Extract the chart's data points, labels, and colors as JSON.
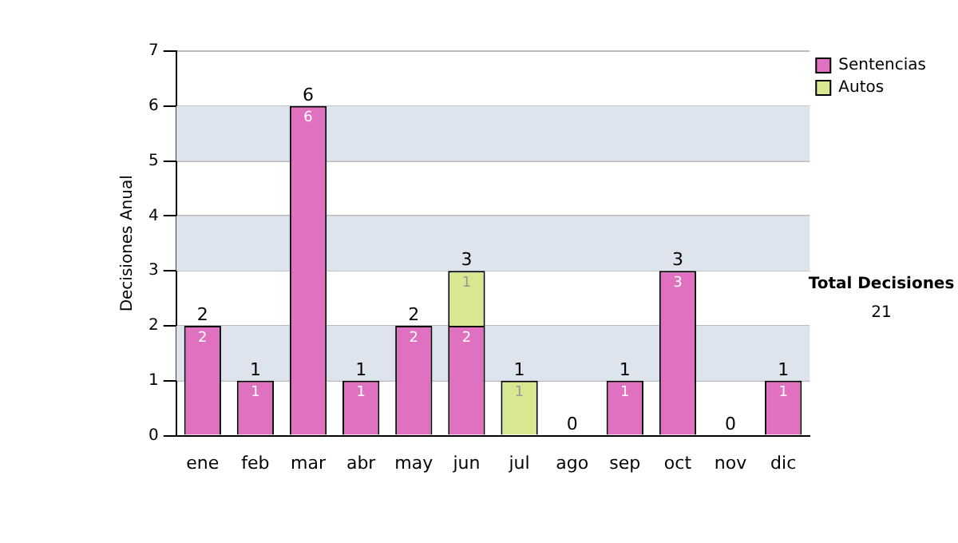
{
  "chart_data": {
    "type": "bar",
    "stacked": true,
    "ylabel": "Decisiones Anual",
    "categories": [
      "ene",
      "feb",
      "mar",
      "abr",
      "may",
      "jun",
      "jul",
      "ago",
      "sep",
      "oct",
      "nov",
      "dic"
    ],
    "series": [
      {
        "name": "Sentencias",
        "color": "#e070c0",
        "values": [
          2,
          1,
          6,
          1,
          2,
          2,
          0,
          0,
          1,
          3,
          0,
          1
        ],
        "value_labels": [
          "2",
          "1",
          "6",
          "1",
          "2",
          "2",
          null,
          null,
          "1",
          "3",
          null,
          "1"
        ]
      },
      {
        "name": "Autos",
        "color": "#d8e890",
        "values": [
          0,
          0,
          0,
          0,
          0,
          1,
          1,
          0,
          0,
          0,
          0,
          0
        ],
        "value_labels": [
          null,
          null,
          null,
          null,
          null,
          "1",
          "1",
          null,
          null,
          null,
          null,
          null
        ]
      }
    ],
    "ylim": [
      0,
      7
    ],
    "yticks": [
      0,
      1,
      2,
      3,
      4,
      5,
      6,
      7
    ],
    "grid": "y",
    "legend": "right",
    "totals": [
      "2",
      "1",
      "6",
      "1",
      "2",
      "3",
      "1",
      "0",
      "1",
      "3",
      "0",
      "1"
    ],
    "annotations": [
      "Total Decisiones",
      "21"
    ]
  }
}
